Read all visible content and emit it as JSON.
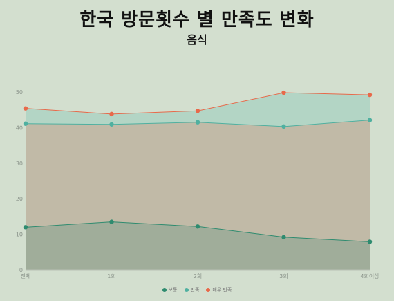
{
  "chart_data": {
    "type": "area",
    "title": "한국 방문횟수 별 만족도 변화",
    "subtitle": "음식",
    "categories": [
      "전체",
      "1회",
      "2회",
      "3회",
      "4회이상"
    ],
    "ylim": [
      0,
      50
    ],
    "yticks": [
      0,
      10,
      20,
      30,
      40,
      50
    ],
    "stacked": true,
    "grid": false,
    "legend_position": "bottom-center",
    "series": [
      {
        "name": "보통",
        "values": [
          12.0,
          13.5,
          12.2,
          9.2,
          7.9
        ],
        "color": "#2e8b6f"
      },
      {
        "name": "만족",
        "values": [
          29.1,
          27.4,
          29.3,
          31.1,
          34.2
        ],
        "color": "#4fb0a0"
      },
      {
        "name": "매우 만족",
        "values": [
          4.3,
          2.9,
          3.2,
          9.5,
          7.1
        ],
        "color": "#e8694a"
      }
    ]
  }
}
